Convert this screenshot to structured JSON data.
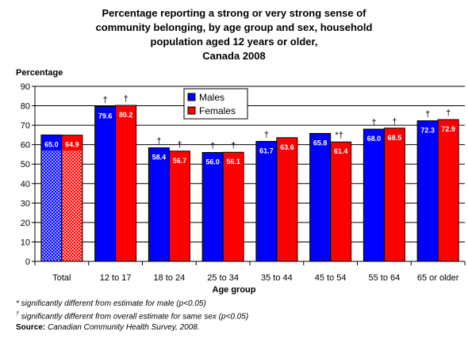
{
  "title_lines": [
    "Percentage reporting a strong or very strong sense of",
    "community belonging, by age group and sex, household",
    "population aged 12 years or older,",
    "Canada 2008"
  ],
  "footnotes": {
    "star_text": "* significantly different from estimate for male (p<0.05)",
    "dagger_symbol": "†",
    "dagger_text": " significantly different from overall estimate for same sex (p<0.05)",
    "source_key": "Source:",
    "source_value": " Canadian Community Health Survey, 2008."
  },
  "colors": {
    "males": "#0000ff",
    "females": "#ff0000",
    "background": "#ffffff",
    "grid": "#000000"
  },
  "chart_data": {
    "type": "bar",
    "title": "Percentage reporting a strong or very strong sense of community belonging, by age group and sex, household population aged 12 years or older, Canada 2008",
    "xlabel": "Age group",
    "ylabel": "Percentage",
    "ylim": [
      0,
      90
    ],
    "ytick_step": 10,
    "grid": "horizontal",
    "legend_position": "top-center",
    "categories": [
      "Total",
      "12 to 17",
      "18 to 24",
      "25 to 34",
      "35 to 44",
      "45 to 54",
      "55 to 64",
      "65 or older"
    ],
    "series": [
      {
        "name": "Males",
        "values": [
          65.0,
          79.6,
          58.4,
          56.0,
          61.7,
          65.8,
          68.0,
          72.3
        ],
        "labels": [
          "65.0",
          "79.6",
          "58.4",
          "56.0",
          "61.7",
          "65.8",
          "68.0",
          "72.3"
        ],
        "marks": [
          "",
          "†",
          "†",
          "†",
          "†",
          "",
          "†",
          "†"
        ]
      },
      {
        "name": "Females",
        "values": [
          64.9,
          80.2,
          56.7,
          56.1,
          63.6,
          61.4,
          68.5,
          72.9
        ],
        "labels": [
          "64.9",
          "80.2",
          "56.7",
          "56.1",
          "63.6",
          "61.4",
          "68.5",
          "72.9"
        ],
        "marks": [
          "",
          "†",
          "†",
          "†",
          "",
          "*†",
          "†",
          "†"
        ]
      }
    ],
    "hatched_categories": [
      "Total"
    ]
  }
}
